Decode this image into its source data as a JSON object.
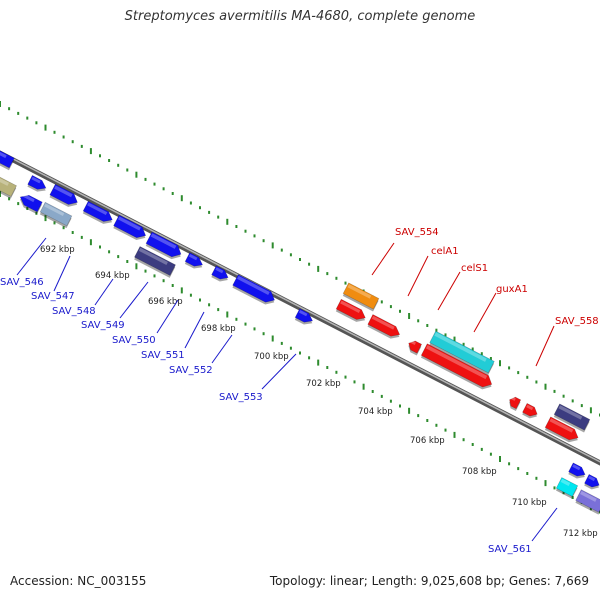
{
  "title": "Streptomyces avermitilis MA-4680, complete genome",
  "footer": {
    "accession": "Accession: NC_003155",
    "summary": "Topology: linear; Length: 9,025,608 bp; Genes: 7,669"
  },
  "colors": {
    "backbone": "#8c8c8c",
    "tick": "#2e8b2e",
    "forward_label": "#cc0000",
    "reverse_label": "#0000aa"
  },
  "ticks": [
    "692 kbp",
    "694 kbp",
    "696 kbp",
    "698 kbp",
    "700 kbp",
    "702 kbp",
    "704 kbp",
    "706 kbp",
    "708 kbp",
    "710 kbp",
    "712 kbp"
  ],
  "labels": {
    "reverse": [
      "SAV_546",
      "SAV_547",
      "SAV_548",
      "SAV_549",
      "SAV_550",
      "SAV_551",
      "SAV_552",
      "SAV_553",
      "SAV_561"
    ],
    "forward": [
      "SAV_554",
      "celA1",
      "celS1",
      "guxA1",
      "SAV_558"
    ]
  }
}
